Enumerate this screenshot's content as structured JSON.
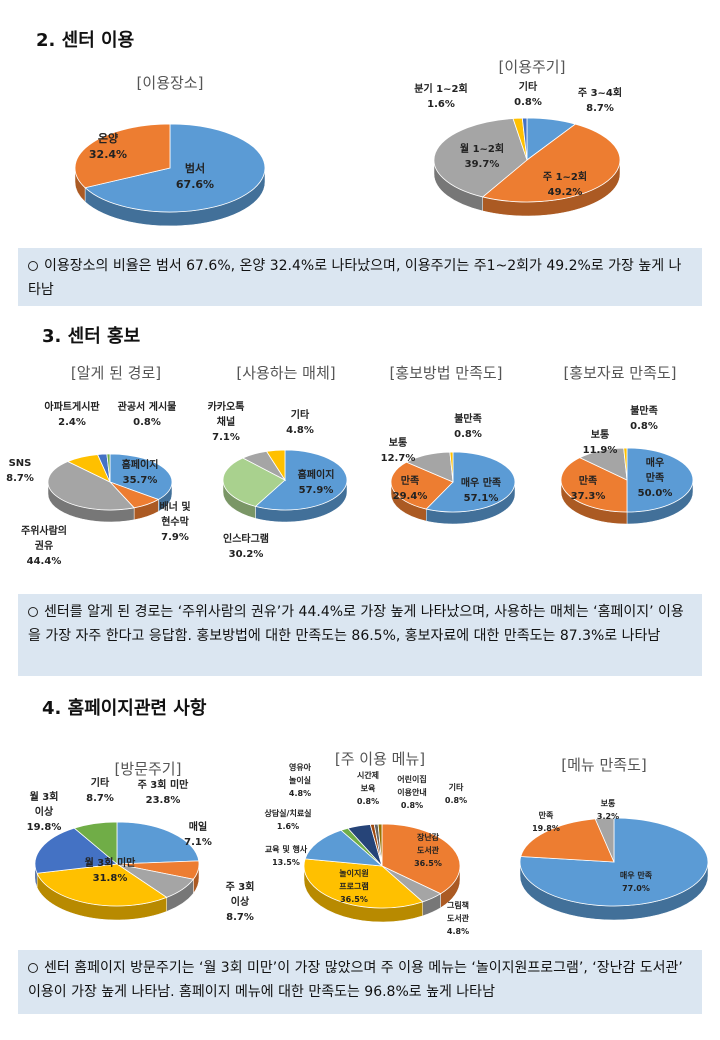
{
  "sections": {
    "s2": "2. 센터 이용",
    "s3": "3. 센터 홍보",
    "s4": "4. 홈페이지관련 사항"
  },
  "summaries": {
    "s2": "이용장소의 비율은 범서 67.6%, 온양 32.4%로 나타났으며, 이용주기는 주1~2회가 49.2%로 가장 높게 나타남",
    "s3": "센터를 알게 된 경로는 ‘주위사람의 권유’가 44.4%로 가장 높게 나타났으며, 사용하는 매체는 ‘홈페이지’ 이용을 가장 자주 한다고 응답함. 홍보방법에 대한 만족도는 86.5%, 홍보자료에 대한 만족도는 87.3%로 나타남",
    "s4": "센터 홈페이지 방문주기는 ‘월 3회 미만’이 가장 많았으며 주 이용 메뉴는 ‘놀이지원프로그램’, ‘장난감 도서관’ 이용이 가장 높게 나타남. 홈페이지 메뉴에 대한 만족도는 96.8%로 높게 나타남"
  },
  "colors": {
    "blue": "#5b9bd5",
    "orange": "#ed7d31",
    "gray": "#a5a5a5",
    "yellow": "#ffc000",
    "navy": "#4472c4",
    "green": "#70ad47",
    "darkblue": "#264478",
    "brown": "#9e480e",
    "darkgray": "#636363"
  },
  "chart_data": [
    {
      "id": "place",
      "type": "pie",
      "title": "[이용장소]",
      "slices": [
        {
          "label": "범서",
          "value": 67.6,
          "text": "67.6%",
          "color": "#5b9bd5"
        },
        {
          "label": "온양",
          "value": 32.4,
          "text": "32.4%",
          "color": "#ed7d31"
        }
      ]
    },
    {
      "id": "cycle",
      "type": "pie",
      "title": "[이용주기]",
      "slices": [
        {
          "label": "주 3~4회",
          "value": 8.7,
          "text": "8.7%",
          "color": "#5b9bd5"
        },
        {
          "label": "주 1~2회",
          "value": 49.2,
          "text": "49.2%",
          "color": "#ed7d31"
        },
        {
          "label": "월 1~2회",
          "value": 39.7,
          "text": "39.7%",
          "color": "#a5a5a5"
        },
        {
          "label": "분기 1~2회",
          "value": 1.6,
          "text": "1.6%",
          "color": "#ffc000"
        },
        {
          "label": "기타",
          "value": 0.8,
          "text": "0.8%",
          "color": "#4472c4"
        }
      ]
    },
    {
      "id": "route",
      "type": "pie",
      "title": "[알게 된 경로]",
      "slices": [
        {
          "label": "홈페이지",
          "value": 35.7,
          "text": "35.7%",
          "color": "#5b9bd5"
        },
        {
          "label": "배너 및 현수막",
          "value": 7.9,
          "text": "7.9%",
          "color": "#ed7d31"
        },
        {
          "label": "주위사람의 권유",
          "value": 44.4,
          "text": "44.4%",
          "color": "#a5a5a5"
        },
        {
          "label": "SNS",
          "value": 8.7,
          "text": "8.7%",
          "color": "#ffc000"
        },
        {
          "label": "아파트게시판",
          "value": 2.4,
          "text": "2.4%",
          "color": "#4472c4"
        },
        {
          "label": "관공서 게시물",
          "value": 0.8,
          "text": "0.8%",
          "color": "#70ad47"
        }
      ]
    },
    {
      "id": "media",
      "type": "pie",
      "title": "[사용하는 매체]",
      "slices": [
        {
          "label": "홈페이지",
          "value": 57.9,
          "text": "57.9%",
          "color": "#5b9bd5"
        },
        {
          "label": "인스타그램",
          "value": 30.2,
          "text": "30.2%",
          "color": "#a9d18e"
        },
        {
          "label": "카카오톡 채널",
          "value": 7.1,
          "text": "7.1%",
          "color": "#a5a5a5"
        },
        {
          "label": "기타",
          "value": 4.8,
          "text": "4.8%",
          "color": "#ffc000"
        }
      ]
    },
    {
      "id": "promo_method",
      "type": "pie",
      "title": "[홍보방법 만족도]",
      "slices": [
        {
          "label": "매우 만족",
          "value": 57.1,
          "text": "57.1%",
          "color": "#5b9bd5"
        },
        {
          "label": "만족",
          "value": 29.4,
          "text": "29.4%",
          "color": "#ed7d31"
        },
        {
          "label": "보통",
          "value": 12.7,
          "text": "12.7%",
          "color": "#a5a5a5"
        },
        {
          "label": "불만족",
          "value": 0.8,
          "text": "0.8%",
          "color": "#ffc000"
        }
      ]
    },
    {
      "id": "promo_material",
      "type": "pie",
      "title": "[홍보자료 만족도]",
      "slices": [
        {
          "label": "매우 만족",
          "value": 50.0,
          "text": "50.0%",
          "color": "#5b9bd5"
        },
        {
          "label": "만족",
          "value": 37.3,
          "text": "37.3%",
          "color": "#ed7d31"
        },
        {
          "label": "보통",
          "value": 11.9,
          "text": "11.9%",
          "color": "#a5a5a5"
        },
        {
          "label": "불만족",
          "value": 0.8,
          "text": "0.8%",
          "color": "#ffc000"
        }
      ]
    },
    {
      "id": "visit",
      "type": "pie",
      "title": "[방문주기]",
      "slices": [
        {
          "label": "주 3회 미만",
          "value": 23.8,
          "text": "23.8%",
          "color": "#5b9bd5"
        },
        {
          "label": "매일",
          "value": 7.1,
          "text": "7.1%",
          "color": "#ed7d31"
        },
        {
          "label": "주 3회 이상",
          "value": 8.7,
          "text": "8.7%",
          "color": "#a5a5a5"
        },
        {
          "label": "월 3회 미만",
          "value": 31.8,
          "text": "31.8%",
          "color": "#ffc000"
        },
        {
          "label": "월 3회 이상",
          "value": 19.8,
          "text": "19.8%",
          "color": "#4472c4"
        },
        {
          "label": "기타",
          "value": 8.7,
          "text": "8.7%",
          "color": "#70ad47"
        }
      ]
    },
    {
      "id": "menu",
      "type": "pie",
      "title": "[주 이용 메뉴]",
      "slices": [
        {
          "label": "장난감 도서관",
          "value": 36.5,
          "text": "36.5%",
          "color": "#ed7d31"
        },
        {
          "label": "그림책 도서관",
          "value": 4.8,
          "text": "4.8%",
          "color": "#a5a5a5"
        },
        {
          "label": "놀이지원 프로그램",
          "value": 36.5,
          "text": "36.5%",
          "color": "#ffc000"
        },
        {
          "label": "교육 및 행사",
          "value": 13.5,
          "text": "13.5%",
          "color": "#5b9bd5"
        },
        {
          "label": "상담실/치료실",
          "value": 1.6,
          "text": "1.6%",
          "color": "#70ad47"
        },
        {
          "label": "영유아 놀이실",
          "value": 4.8,
          "text": "4.8%",
          "color": "#264478"
        },
        {
          "label": "시간제 보육",
          "value": 0.8,
          "text": "0.8%",
          "color": "#9e480e"
        },
        {
          "label": "어린이집 이용안내",
          "value": 0.8,
          "text": "0.8%",
          "color": "#636363"
        },
        {
          "label": "기타",
          "value": 0.8,
          "text": "0.8%",
          "color": "#997300"
        }
      ]
    },
    {
      "id": "menu_sat",
      "type": "pie",
      "title": "[메뉴 만족도]",
      "slices": [
        {
          "label": "매우 만족",
          "value": 77.0,
          "text": "77.0%",
          "color": "#5b9bd5"
        },
        {
          "label": "만족",
          "value": 19.8,
          "text": "19.8%",
          "color": "#ed7d31"
        },
        {
          "label": "보통",
          "value": 3.2,
          "text": "3.2%",
          "color": "#a5a5a5"
        }
      ]
    }
  ]
}
